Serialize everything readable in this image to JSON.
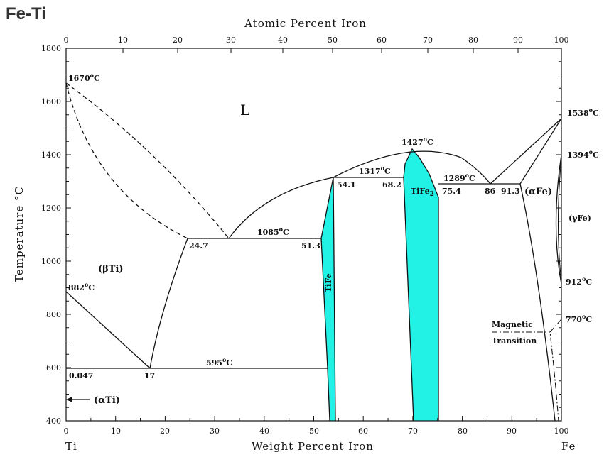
{
  "title": "Fe-Ti",
  "axes": {
    "bottom_title": "Weight Percent Iron",
    "top_title": "Atomic Percent Iron",
    "left_title": "Temperature °C",
    "bottom_ticks": [
      "0",
      "10",
      "20",
      "30",
      "40",
      "50",
      "60",
      "70",
      "80",
      "90",
      "100"
    ],
    "top_ticks": [
      "0",
      "10",
      "20",
      "30",
      "40",
      "50",
      "60",
      "70",
      "80",
      "90",
      "100"
    ],
    "left_ticks": [
      "400",
      "600",
      "800",
      "1000",
      "1200",
      "1400",
      "1600",
      "1800"
    ],
    "left_end": "Ti",
    "right_end": "Fe"
  },
  "phases": {
    "liquid": "L",
    "beta_ti": "(βTi)",
    "alpha_ti": "(αTi)",
    "alpha_fe": "(αFe)",
    "gamma_fe": "(γFe)",
    "tife": "TiFe",
    "tife2_base": "TiFe",
    "tife2_sub": "2"
  },
  "temperatures": {
    "t1670": "1670",
    "t1538": "1538",
    "t1394": "1394",
    "t1427": "1427",
    "t1317": "1317",
    "t1289": "1289",
    "t1085": "1085",
    "t882": "882",
    "t912": "912",
    "t770": "770",
    "t595": "595",
    "deg": "o",
    "unit": "C"
  },
  "compositions": {
    "c24_7": "24.7",
    "c51_3": "51.3",
    "c54_1": "54.1",
    "c68_2": "68.2",
    "c75_4": "75.4",
    "c86": "86",
    "c91_3": "91.3",
    "c0_047": "0.047",
    "c17": "17"
  },
  "magnetic": {
    "line1": "Magnetic",
    "line2": "Transition"
  },
  "colors": {
    "compound_fill": "#22f2e6",
    "line": "#111111"
  }
}
